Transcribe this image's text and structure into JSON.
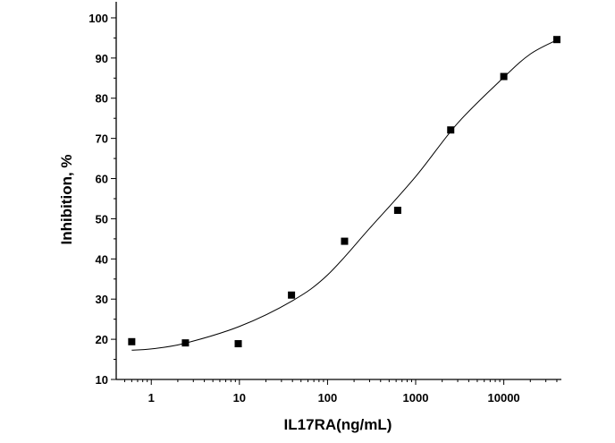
{
  "chart_data": {
    "type": "scatter",
    "title": "",
    "xlabel": "IL17RA(ng/mL)",
    "ylabel": "Inhibition, %",
    "xscale": "log",
    "xlim": [
      0.4,
      45000
    ],
    "ylim": [
      10,
      104
    ],
    "xticks": [
      1,
      10,
      100,
      1000,
      10000
    ],
    "xtick_labels": [
      "1",
      "10",
      "100",
      "1000",
      "10000"
    ],
    "yticks": [
      10,
      20,
      30,
      40,
      50,
      60,
      70,
      80,
      90,
      100
    ],
    "ytick_labels": [
      "10",
      "20",
      "30",
      "40",
      "50",
      "60",
      "70",
      "80",
      "90",
      "100"
    ],
    "grid": false,
    "legend": "none",
    "marker_color": "#000000",
    "series": [
      {
        "x": [
          0.6,
          2.44,
          9.7,
          39,
          156,
          625,
          2500,
          10000,
          40000
        ],
        "y": [
          19.4,
          19.1,
          18.9,
          31.0,
          44.4,
          52.1,
          72.1,
          85.4,
          94.6
        ]
      }
    ],
    "fit_curve": {
      "x": [
        0.6,
        1,
        2.4,
        10,
        40,
        100,
        300,
        1000,
        3000,
        10000,
        20000,
        40000
      ],
      "y": [
        17.3,
        17.6,
        19.0,
        23.2,
        29.6,
        36.0,
        47.6,
        60.5,
        73.8,
        85.2,
        91.0,
        94.5
      ]
    }
  }
}
